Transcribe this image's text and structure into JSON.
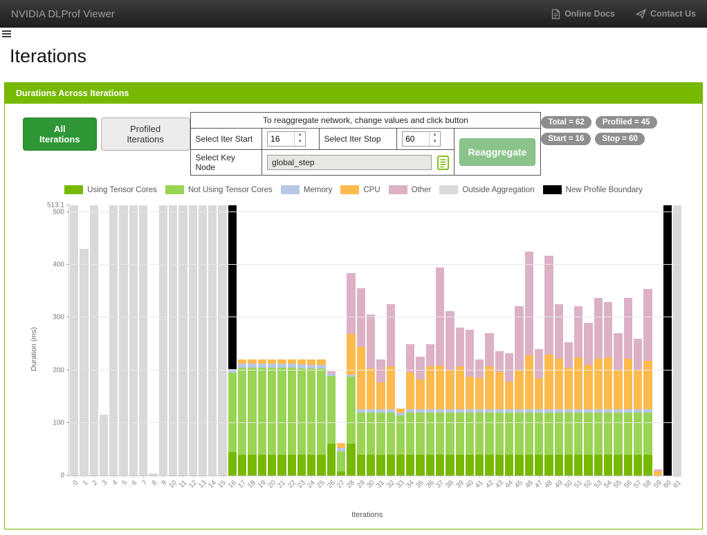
{
  "header": {
    "title": "NVIDIA DLProf Viewer",
    "links": [
      {
        "label": "Online Docs",
        "icon": "document-icon"
      },
      {
        "label": "Contact Us",
        "icon": "paper-plane-icon"
      }
    ]
  },
  "page": {
    "title": "Iterations"
  },
  "panel": {
    "title": "Durations Across Iterations"
  },
  "toolbar": {
    "all_iterations_label": "All Iterations",
    "profiled_iterations_label": "Profiled Iterations"
  },
  "reaggregate_form": {
    "caption": "To reaggregate network, change values and click button",
    "iter_start_label": "Select Iter Start",
    "iter_start_value": "16",
    "iter_stop_label": "Select Iter Stop",
    "iter_stop_value": "60",
    "key_node_label": "Select Key Node",
    "key_node_value": "global_step",
    "button_label": "Reaggregate"
  },
  "badges": [
    {
      "label": "Total = 62"
    },
    {
      "label": "Profiled = 45"
    },
    {
      "label": "Start = 16"
    },
    {
      "label": "Stop = 60"
    }
  ],
  "colors": {
    "accent_green": "#76b900",
    "active_button_green": "#2f9636",
    "reaggregate_button_green": "#8bc48b",
    "badge_gray": "#8e8e8e"
  },
  "chart_data": {
    "type": "bar",
    "stacked": true,
    "xlabel": "Iterations",
    "ylabel": "Duration (ms)",
    "ylim": [
      0,
      513.1
    ],
    "y_ticks": [
      0,
      100,
      200,
      300,
      400,
      500,
      513.1
    ],
    "grid": true,
    "legend_position": "top",
    "categories": [
      0,
      1,
      2,
      3,
      4,
      5,
      6,
      7,
      8,
      9,
      10,
      11,
      12,
      13,
      14,
      15,
      16,
      17,
      18,
      19,
      20,
      21,
      22,
      23,
      24,
      25,
      26,
      27,
      28,
      29,
      30,
      31,
      32,
      33,
      34,
      35,
      36,
      37,
      38,
      39,
      40,
      41,
      42,
      43,
      44,
      45,
      46,
      47,
      48,
      49,
      50,
      51,
      52,
      53,
      54,
      55,
      56,
      57,
      58,
      59,
      60,
      61
    ],
    "series": [
      {
        "name": "Using Tensor Cores",
        "color": "#76b900",
        "values": [
          0,
          0,
          0,
          0,
          0,
          0,
          0,
          0,
          0,
          0,
          0,
          0,
          0,
          0,
          0,
          0,
          44,
          40,
          40,
          40,
          40,
          40,
          40,
          40,
          40,
          40,
          61,
          8,
          60,
          40,
          40,
          40,
          40,
          40,
          40,
          40,
          40,
          40,
          40,
          40,
          40,
          40,
          40,
          40,
          40,
          40,
          40,
          40,
          40,
          40,
          40,
          40,
          40,
          40,
          40,
          40,
          40,
          40,
          40,
          0,
          0,
          0
        ]
      },
      {
        "name": "Not Using Tensor Cores",
        "color": "#9ad455",
        "values": [
          0,
          0,
          0,
          0,
          0,
          0,
          0,
          0,
          0,
          0,
          0,
          0,
          0,
          0,
          0,
          0,
          152,
          165,
          165,
          165,
          165,
          165,
          165,
          164,
          163,
          163,
          128,
          38,
          128,
          80,
          80,
          80,
          80,
          74,
          80,
          80,
          80,
          80,
          80,
          80,
          80,
          80,
          80,
          80,
          80,
          80,
          80,
          80,
          80,
          80,
          80,
          80,
          80,
          80,
          80,
          80,
          80,
          80,
          80,
          0,
          0,
          0
        ]
      },
      {
        "name": "Memory",
        "color": "#b7c7e6",
        "values": [
          0,
          0,
          0,
          0,
          0,
          0,
          0,
          0,
          0,
          0,
          0,
          0,
          0,
          0,
          0,
          0,
          6,
          7,
          7,
          7,
          7,
          7,
          7,
          7,
          7,
          7,
          4,
          6,
          3,
          6,
          6,
          6,
          6,
          6,
          6,
          6,
          6,
          6,
          6,
          6,
          6,
          6,
          6,
          6,
          6,
          6,
          6,
          6,
          6,
          6,
          6,
          6,
          6,
          6,
          6,
          6,
          6,
          6,
          6,
          0,
          0,
          0
        ]
      },
      {
        "name": "CPU",
        "color": "#fdba4d",
        "values": [
          0,
          0,
          0,
          0,
          0,
          0,
          0,
          0,
          0,
          0,
          0,
          0,
          0,
          0,
          0,
          0,
          0,
          8,
          8,
          8,
          8,
          8,
          9,
          9,
          10,
          10,
          0,
          10,
          78,
          118,
          77,
          51,
          82,
          8,
          70,
          56,
          82,
          83,
          74,
          82,
          62,
          59,
          82,
          71,
          52,
          74,
          102,
          59,
          104,
          96,
          79,
          99,
          84,
          96,
          99,
          74,
          96,
          74,
          92,
          8,
          0,
          0
        ]
      },
      {
        "name": "Other",
        "color": "#dcb1c6",
        "values": [
          0,
          0,
          0,
          0,
          0,
          0,
          0,
          0,
          0,
          0,
          0,
          0,
          0,
          0,
          0,
          0,
          0,
          0,
          0,
          0,
          0,
          0,
          0,
          0,
          0,
          0,
          5,
          0,
          116,
          112,
          103,
          43,
          117,
          0,
          54,
          44,
          42,
          186,
          112,
          73,
          89,
          36,
          63,
          39,
          54,
          122,
          197,
          55,
          187,
          103,
          48,
          97,
          80,
          115,
          105,
          70,
          115,
          60,
          137,
          4,
          0,
          0
        ]
      },
      {
        "name": "Outside Aggregation",
        "color": "#d9d9d9",
        "values": [
          513.1,
          430,
          513.1,
          115,
          513.1,
          513.1,
          513.1,
          513.1,
          4,
          513.1,
          513.1,
          513.1,
          513.1,
          513.1,
          513.1,
          513.1,
          0,
          0,
          0,
          0,
          0,
          0,
          0,
          0,
          0,
          0,
          0,
          0,
          0,
          0,
          0,
          0,
          0,
          0,
          0,
          0,
          0,
          0,
          0,
          0,
          0,
          0,
          0,
          0,
          0,
          0,
          0,
          0,
          0,
          0,
          0,
          0,
          0,
          0,
          0,
          0,
          0,
          0,
          0,
          0,
          0,
          513.1
        ]
      },
      {
        "name": "New Profile Boundary",
        "color": "#000000",
        "values": [
          0,
          0,
          0,
          0,
          0,
          0,
          0,
          0,
          0,
          0,
          0,
          0,
          0,
          0,
          0,
          0,
          311,
          0,
          0,
          0,
          0,
          0,
          0,
          0,
          0,
          0,
          0,
          0,
          0,
          0,
          0,
          0,
          0,
          0,
          0,
          0,
          0,
          0,
          0,
          0,
          0,
          0,
          0,
          0,
          0,
          0,
          0,
          0,
          0,
          0,
          0,
          0,
          0,
          0,
          0,
          0,
          0,
          0,
          0,
          0,
          513.1,
          0
        ]
      }
    ]
  }
}
